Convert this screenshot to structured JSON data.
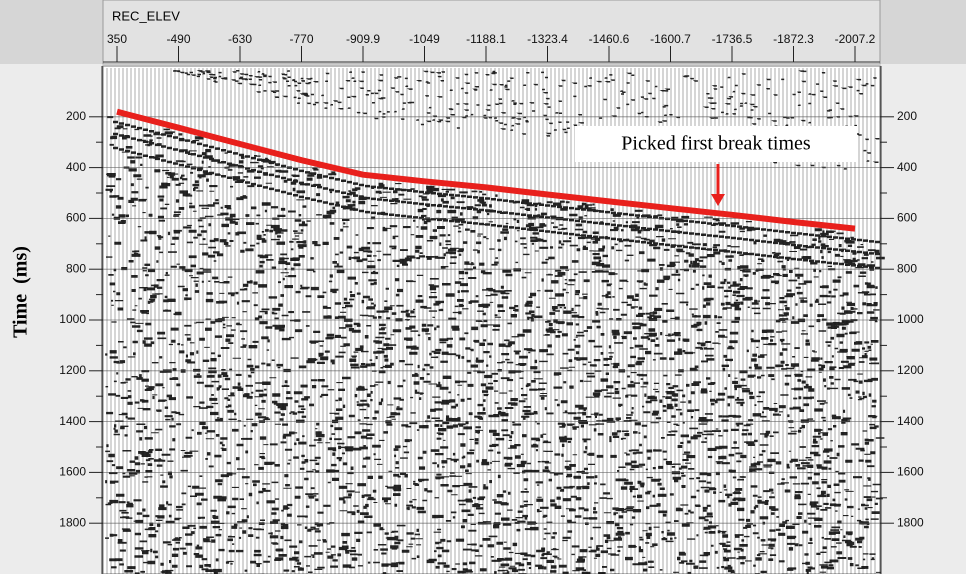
{
  "chart_data": {
    "type": "seismic",
    "x_label": "REC_ELEV",
    "y_label": "Time  (ms)",
    "categories": [
      "350",
      "-490",
      "-630",
      "-770",
      "-909.9",
      "-1049",
      "-1188.1",
      "-1323.4",
      "-1460.6",
      "-1600.7",
      "-1736.5",
      "-1872.3",
      "-2007.2"
    ],
    "ylim": [
      0,
      2000
    ],
    "y_inverted": true,
    "yticks": [
      200,
      400,
      600,
      800,
      1000,
      1200,
      1400,
      1600,
      1800
    ],
    "color": "#e8201c",
    "values": [
      180,
      243,
      307,
      371,
      428,
      454,
      478,
      506,
      533,
      560,
      586,
      614,
      640
    ],
    "annotation": "Picked first break times"
  }
}
